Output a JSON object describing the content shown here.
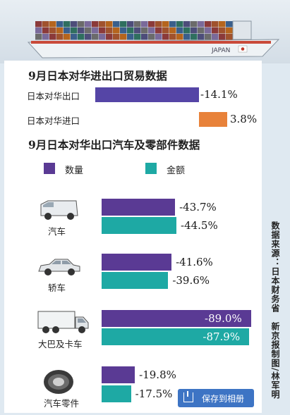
{
  "colors": {
    "export_bar": "#5545a6",
    "import_bar": "#e8823a",
    "quantity": "#5a3a94",
    "amount": "#1ea9a4"
  },
  "banner": {
    "ship_text": "JAPAN"
  },
  "section1": {
    "title": "9月日本对华进出口贸易数据"
  },
  "section2": {
    "title": "9月日本对华出口汽车及零部件数据",
    "legend_quantity": "数量",
    "legend_amount": "金额"
  },
  "icons": [
    "van-icon",
    "sedan-icon",
    "truck-icon",
    "tire-icon"
  ],
  "source_note": "数据来源：日本财务省　新京报制图/林军明",
  "save_button": {
    "label": "保存到相册"
  },
  "chart_data": [
    {
      "type": "bar",
      "title": "9月日本对华进出口贸易数据",
      "categories": [
        "日本对华出口",
        "日本对华进口"
      ],
      "values": [
        -14.1,
        3.8
      ],
      "value_labels": [
        "-14.1%",
        "3.8%"
      ]
    },
    {
      "type": "bar",
      "title": "9月日本对华出口汽车及零部件数据",
      "categories": [
        "汽车",
        "轿车",
        "大巴及卡车",
        "汽车零件"
      ],
      "series": [
        {
          "name": "数量",
          "values": [
            -43.7,
            -41.6,
            -89.0,
            -19.8
          ],
          "value_labels": [
            "-43.7%",
            "-41.6%",
            "-89.0%",
            "-19.8%"
          ]
        },
        {
          "name": "金额",
          "values": [
            -44.5,
            -39.6,
            -87.9,
            -17.5
          ],
          "value_labels": [
            "-44.5%",
            "-39.6%",
            "-87.9%",
            "-17.5%"
          ]
        }
      ]
    }
  ]
}
